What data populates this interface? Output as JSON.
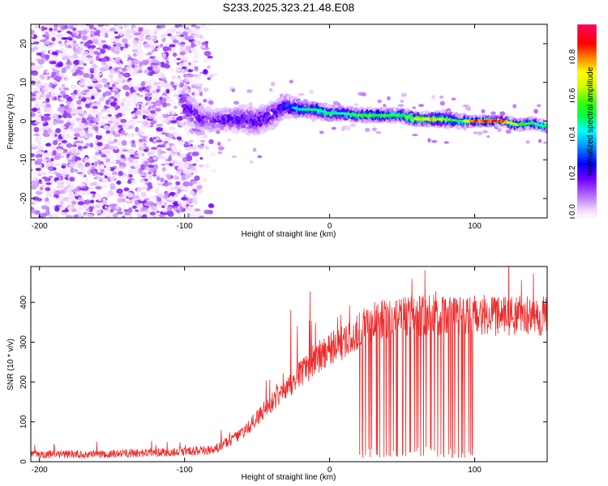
{
  "title": "S233.2025.323.21.48.E08",
  "chart_data": [
    {
      "type": "heatmap",
      "xlabel": "Height of straight line (km)",
      "ylabel": "Frequency (Hz)",
      "xlim": [
        -206,
        150
      ],
      "ylim": [
        -25,
        25
      ],
      "xticks": [
        -200,
        -100,
        0,
        100
      ],
      "xtick_labels": [
        "-200",
        "-100",
        "0",
        "100"
      ],
      "yticks": [
        -20,
        -10,
        0,
        10,
        20
      ],
      "ytick_labels": [
        "-20",
        "-10",
        "0",
        "10",
        "20"
      ],
      "colorbar": {
        "label": "Normalized spectral amplitude",
        "range": [
          0,
          1
        ],
        "ticks": [
          0,
          0.2,
          0.4,
          0.6,
          0.8
        ],
        "tick_labels": [
          "0.0",
          "0.2",
          "0.4",
          "0.6",
          "0.8"
        ]
      },
      "noise_region": {
        "x_from": -206,
        "x_to": -80,
        "level": 0.12
      },
      "ridge": {
        "x": [
          -100,
          -90,
          -80,
          -70,
          -60,
          -50,
          -40,
          -30,
          -20,
          -10,
          0,
          10,
          20,
          30,
          40,
          50,
          60,
          70,
          80,
          90,
          100,
          110,
          120,
          130,
          140,
          150
        ],
        "freq": [
          4,
          1,
          0,
          0.5,
          0.5,
          0,
          1.5,
          4,
          3,
          3,
          2,
          2,
          1.5,
          1.5,
          1.5,
          1.5,
          0.5,
          0.5,
          0.5,
          0,
          0,
          0,
          0,
          -1,
          -0.5,
          -1.5
        ],
        "amplitude": [
          0.22,
          0.2,
          0.2,
          0.22,
          0.24,
          0.25,
          0.25,
          0.3,
          0.45,
          0.5,
          0.5,
          0.5,
          0.55,
          0.55,
          0.55,
          0.55,
          0.7,
          0.75,
          0.6,
          0.5,
          0.85,
          0.85,
          0.85,
          0.6,
          0.5,
          0.5
        ],
        "width": [
          4,
          3,
          2.5,
          2.5,
          3,
          3,
          3,
          2.5,
          1.5,
          1.5,
          1.5,
          1.2,
          1.2,
          1.2,
          1.2,
          1.2,
          1.2,
          1.2,
          1.5,
          1.2,
          0.8,
          0.8,
          0.8,
          1,
          1,
          1
        ]
      }
    },
    {
      "type": "line",
      "xlabel": "Height of straight line (km)",
      "ylabel": "SNR (10 * v/v)",
      "xlim": [
        -206,
        150
      ],
      "ylim": [
        0,
        490
      ],
      "xticks": [
        -200,
        -100,
        0,
        100
      ],
      "xtick_labels": [
        "-200",
        "-100",
        "0",
        "100"
      ],
      "yticks": [
        0,
        100,
        200,
        300,
        400
      ],
      "ytick_labels": [
        "0",
        "100",
        "200",
        "300",
        "400"
      ],
      "color": "#ee2b2b",
      "trend": {
        "x": [
          -206,
          -150,
          -100,
          -80,
          -60,
          -50,
          -40,
          -30,
          -20,
          -10,
          0,
          10,
          20,
          30,
          40,
          50,
          60,
          70,
          80,
          90,
          100,
          110,
          120,
          130,
          140,
          150
        ],
        "y": [
          18,
          20,
          25,
          30,
          70,
          110,
          150,
          180,
          220,
          250,
          285,
          300,
          330,
          350,
          360,
          362,
          365,
          368,
          370,
          365,
          370,
          365,
          368,
          370,
          372,
          365
        ]
      },
      "spikes": {
        "x_from": 20,
        "x_to": 100,
        "min_value": 10,
        "count": 45
      },
      "noise_amplitude_fraction": 0.12
    }
  ]
}
